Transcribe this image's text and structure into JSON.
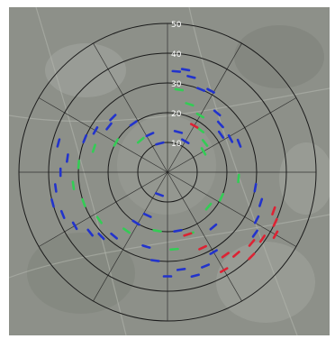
{
  "map": {
    "rings": [
      {
        "label": "10",
        "value": 10
      },
      {
        "label": "20",
        "value": 20
      },
      {
        "label": "30",
        "value": 30
      },
      {
        "label": "40",
        "value": 40
      },
      {
        "label": "50",
        "value": 50
      }
    ],
    "max_radius": 50,
    "colors": {
      "aerial_base": "#8d9089",
      "aerial_dark": "#6f746c",
      "aerial_light": "#b3b5ae",
      "grid_line": "#1a1a1a",
      "label": "#ffffff",
      "blue_marks": "#2233cc",
      "green_marks": "#33cc55",
      "red_marks": "#dd2233"
    },
    "marks": {
      "blue": [
        {
          "az": 5,
          "r": 34
        },
        {
          "az": 10,
          "r": 35
        },
        {
          "az": 14,
          "r": 33
        },
        {
          "az": 22,
          "r": 30
        },
        {
          "az": 28,
          "r": 31
        },
        {
          "az": 40,
          "r": 26
        },
        {
          "az": 48,
          "r": 24
        },
        {
          "az": 55,
          "r": 22
        },
        {
          "az": 62,
          "r": 24
        },
        {
          "az": 68,
          "r": 26
        },
        {
          "az": 100,
          "r": 30
        },
        {
          "az": 108,
          "r": 33
        },
        {
          "az": 118,
          "r": 34
        },
        {
          "az": 125,
          "r": 36
        },
        {
          "az": 150,
          "r": 31
        },
        {
          "az": 158,
          "r": 34
        },
        {
          "az": 165,
          "r": 36
        },
        {
          "az": 172,
          "r": 33
        },
        {
          "az": 180,
          "r": 35
        },
        {
          "az": 188,
          "r": 30
        },
        {
          "az": 196,
          "r": 26
        },
        {
          "az": 205,
          "r": 16
        },
        {
          "az": 212,
          "r": 20
        },
        {
          "az": 220,
          "r": 28
        },
        {
          "az": 226,
          "r": 31
        },
        {
          "az": 232,
          "r": 33
        },
        {
          "az": 240,
          "r": 36
        },
        {
          "az": 248,
          "r": 38
        },
        {
          "az": 255,
          "r": 40
        },
        {
          "az": 262,
          "r": 38
        },
        {
          "az": 270,
          "r": 36
        },
        {
          "az": 278,
          "r": 34
        },
        {
          "az": 285,
          "r": 38
        },
        {
          "az": 292,
          "r": 30
        },
        {
          "az": 300,
          "r": 28
        },
        {
          "az": 308,
          "r": 25
        },
        {
          "az": 315,
          "r": 26
        },
        {
          "az": 325,
          "r": 20
        },
        {
          "az": 335,
          "r": 14
        },
        {
          "az": 345,
          "r": 10
        },
        {
          "az": 15,
          "r": 14
        },
        {
          "az": 30,
          "r": 12
        },
        {
          "az": 200,
          "r": 8
        },
        {
          "az": 170,
          "r": 20
        },
        {
          "az": 140,
          "r": 24
        }
      ],
      "green": [
        {
          "az": 8,
          "r": 28
        },
        {
          "az": 18,
          "r": 24
        },
        {
          "az": 30,
          "r": 22
        },
        {
          "az": 38,
          "r": 18
        },
        {
          "az": 52,
          "r": 16
        },
        {
          "az": 60,
          "r": 14
        },
        {
          "az": 215,
          "r": 24
        },
        {
          "az": 235,
          "r": 28
        },
        {
          "az": 250,
          "r": 30
        },
        {
          "az": 262,
          "r": 32
        },
        {
          "az": 275,
          "r": 30
        },
        {
          "az": 288,
          "r": 26
        },
        {
          "az": 300,
          "r": 20
        },
        {
          "az": 320,
          "r": 14
        },
        {
          "az": 190,
          "r": 20
        },
        {
          "az": 175,
          "r": 26
        },
        {
          "az": 160,
          "r": 22
        },
        {
          "az": 130,
          "r": 18
        },
        {
          "az": 115,
          "r": 20
        },
        {
          "az": 95,
          "r": 24
        }
      ],
      "red": [
        {
          "az": 110,
          "r": 38
        },
        {
          "az": 115,
          "r": 40
        },
        {
          "az": 120,
          "r": 42
        },
        {
          "az": 125,
          "r": 39
        },
        {
          "az": 130,
          "r": 37
        },
        {
          "az": 135,
          "r": 40
        },
        {
          "az": 140,
          "r": 36
        },
        {
          "az": 145,
          "r": 34
        },
        {
          "az": 150,
          "r": 38
        },
        {
          "az": 155,
          "r": 28
        },
        {
          "az": 162,
          "r": 22
        },
        {
          "az": 30,
          "r": 18
        }
      ]
    }
  }
}
